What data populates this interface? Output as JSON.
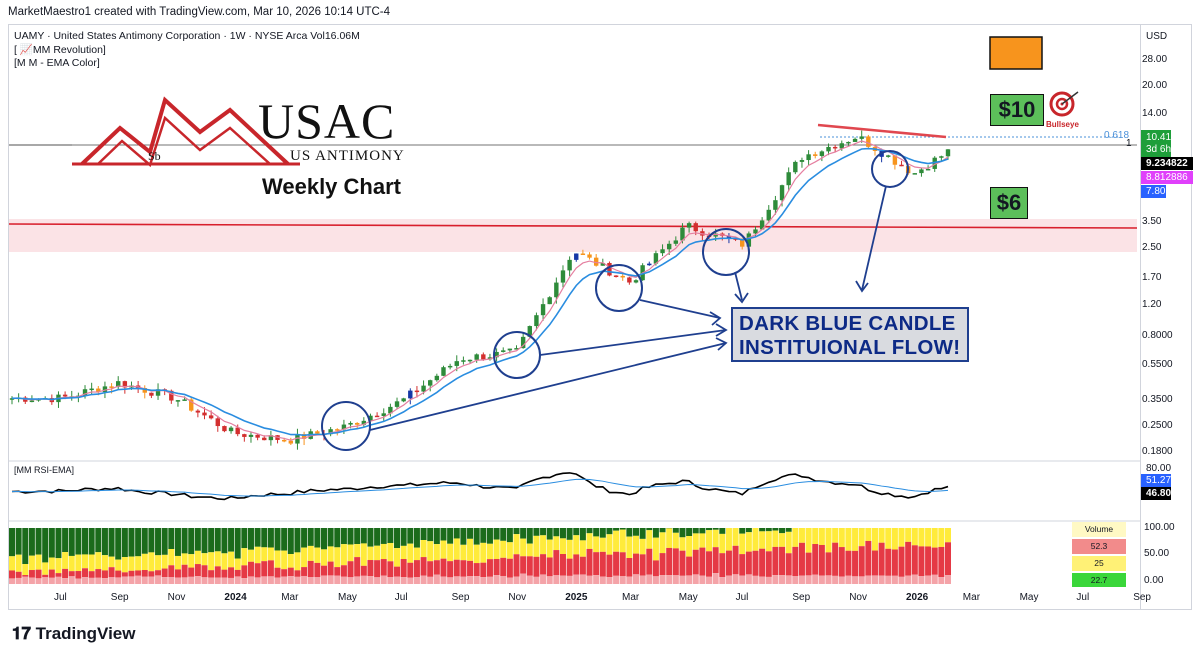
{
  "header": {
    "created_by": "MarketMaestro1 created with TradingView.com, Mar 10, 2026 10:14 UTC-4"
  },
  "symbol_info": {
    "line1": "UAMY · United States Antimony Corporation · 1W · NYSE Arca  Vol16.06M",
    "line2": "[ 📈MM Revolution]",
    "line3": "[M M - EMA Color]"
  },
  "logo": {
    "main": "USAC",
    "sub": "US ANTIMONY",
    "element": "Sb"
  },
  "annotations": {
    "weekly_chart": "Weekly Chart",
    "dark_blue_line1": "DARK BLUE CANDLE",
    "dark_blue_line2": "INSTITUIONAL FLOW!",
    "target_10": "$10",
    "target_6": "$6",
    "bullseye": "Bullseye",
    "fib": "0.618",
    "fib_marker": "1"
  },
  "axis": {
    "currency": "USD",
    "price_ticks": [
      "28.00",
      "20.00",
      "14.00",
      "3.50",
      "2.50",
      "1.70",
      "1.20",
      "0.8000",
      "0.5500",
      "0.3500",
      "0.2500",
      "0.1800"
    ],
    "rsi_ticks": [
      "80.00"
    ],
    "vol_ticks": [
      "100.00",
      "50.00",
      "0.00"
    ],
    "x_ticks": [
      "Jul",
      "Sep",
      "Nov",
      "2024",
      "Mar",
      "May",
      "Jul",
      "Sep",
      "Nov",
      "2025",
      "Mar",
      "May",
      "Jul",
      "Sep",
      "Nov",
      "2026",
      "Mar",
      "May",
      "Jul",
      "Sep"
    ]
  },
  "price_tags": {
    "last": "10.41",
    "countdown": "3d 6h",
    "ema_fast": "9.234822",
    "ema_mid": "8.812886",
    "ema_slow": "7.80"
  },
  "rsi_pane": {
    "title": "[MM RSI-EMA]",
    "ema_value": "51.27",
    "rsi_value": "46.80"
  },
  "volume_pane": {
    "legend_title": "Volume",
    "v1": "52.3",
    "v2": "25",
    "v3": "22.7"
  },
  "footer": {
    "brand": "TradingView"
  },
  "colors": {
    "up": "#2e8b3a",
    "down": "#d32f2f",
    "dark_blue": "#1637a6",
    "orange": "#f7941d",
    "ema_blue": "#2a8de0",
    "ema_pink": "#e57fa0",
    "resistance": "#e0474f",
    "target_green": "#5cbf5a"
  },
  "chart_data": {
    "type": "line",
    "title": "UAMY · United States Antimony Corporation · 1W · NYSE Arca",
    "ylabel": "USD",
    "ylim": [
      0.15,
      35
    ],
    "scale": "log",
    "x": [
      "Jul",
      "Sep",
      "Nov",
      "2024",
      "Mar",
      "May",
      "Jul",
      "Sep",
      "Nov",
      "2025",
      "Mar",
      "May",
      "Jul",
      "Sep",
      "Nov",
      "2026",
      "Mar"
    ],
    "series": [
      {
        "values": [
          0.36,
          0.44,
          0.36,
          0.23,
          0.21,
          0.25,
          0.35,
          0.6,
          0.65,
          2.4,
          1.6,
          3.3,
          2.6,
          8.0,
          10.5,
          6.5,
          10.41
        ]
      }
    ],
    "resistance_level": 3.25,
    "targets": [
      10,
      6
    ],
    "last_price": 10.41
  }
}
